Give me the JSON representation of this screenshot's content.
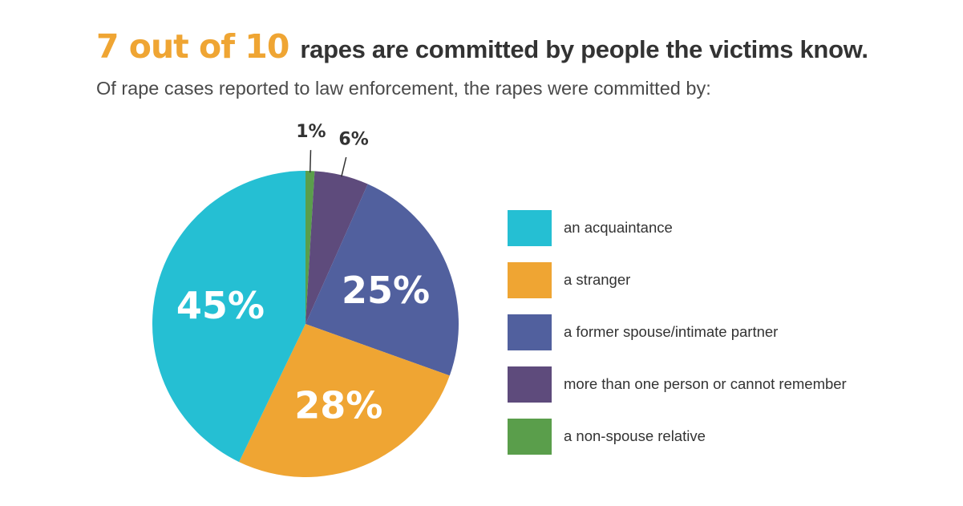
{
  "headline": {
    "accent": "7 out of 10",
    "rest": "rapes are committed by people the victims know."
  },
  "subtitle": "Of rape cases reported to law enforcement, the rapes were committed by:",
  "chart_data": {
    "type": "pie",
    "start": "12 o'clock, clockwise",
    "slices": [
      {
        "label": "a non-spouse relative",
        "value": 1,
        "display": "1%",
        "color": "#5A9E4B",
        "label_position": "outside"
      },
      {
        "label": "more than one person or cannot remember",
        "value": 6,
        "display": "6%",
        "color": "#5E4B7C",
        "label_position": "outside"
      },
      {
        "label": "a former spouse/intimate partner",
        "value": 25,
        "display": "25%",
        "color": "#51609E",
        "label_position": "inside"
      },
      {
        "label": "a stranger",
        "value": 28,
        "display": "28%",
        "color": "#EFA533",
        "label_position": "inside"
      },
      {
        "label": "an acquaintance",
        "value": 45,
        "display": "45%",
        "color": "#25BFD3",
        "label_position": "inside"
      }
    ],
    "legend": {
      "placement": "right",
      "items": [
        {
          "label": "an acquaintance",
          "color": "#25BFD3"
        },
        {
          "label": "a stranger",
          "color": "#EFA533"
        },
        {
          "label": "a former spouse/intimate partner",
          "color": "#51609E"
        },
        {
          "label": "more than one person or cannot remember",
          "color": "#5E4B7C"
        },
        {
          "label": "a non-spouse relative",
          "color": "#5A9E4B"
        }
      ]
    }
  }
}
